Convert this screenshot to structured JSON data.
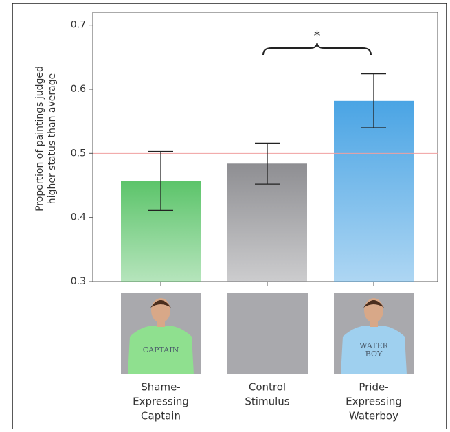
{
  "chart_data": {
    "type": "bar",
    "ylabel_lines": [
      "Proportion of paintings judged",
      "higher status than average"
    ],
    "categories": [
      [
        "Shame-",
        "Expressing",
        "Captain"
      ],
      [
        "Control",
        "Stimulus"
      ],
      [
        "Pride-",
        "Expressing",
        "Waterboy"
      ]
    ],
    "values": [
      0.457,
      0.484,
      0.582
    ],
    "errors": [
      0.046,
      0.032,
      0.042
    ],
    "colors": [
      "#5cc46a",
      "#8e8e92",
      "#4aa4e4"
    ],
    "photo_labels": [
      [
        "CAPTAIN"
      ],
      [],
      [
        "WATER",
        "BOY"
      ]
    ],
    "ylim": [
      0.3,
      0.72
    ],
    "yticks": [
      0.3,
      0.4,
      0.5,
      0.6,
      0.7
    ],
    "reference_line": {
      "value": 0.5,
      "color": "#f0a0a0"
    },
    "significance": {
      "text": "*",
      "categories": [
        1,
        2
      ]
    }
  }
}
